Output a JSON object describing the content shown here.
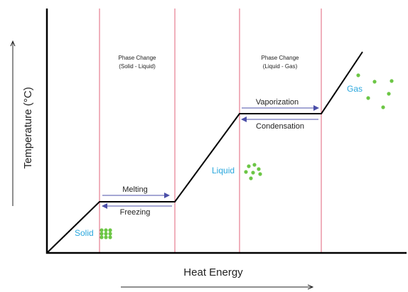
{
  "diagram": {
    "y_axis_label": "Temperature (°C)",
    "x_axis_label": "Heat Energy",
    "phase_changes": [
      {
        "title": "Phase Change",
        "subtitle": "(Solid - Liquid)",
        "forward": "Melting",
        "reverse": "Freezing"
      },
      {
        "title": "Phase Change",
        "subtitle": "(Liquid - Gas)",
        "forward": "Vaporization",
        "reverse": "Condensation"
      }
    ],
    "states": [
      "Solid",
      "Liquid",
      "Gas"
    ]
  }
}
